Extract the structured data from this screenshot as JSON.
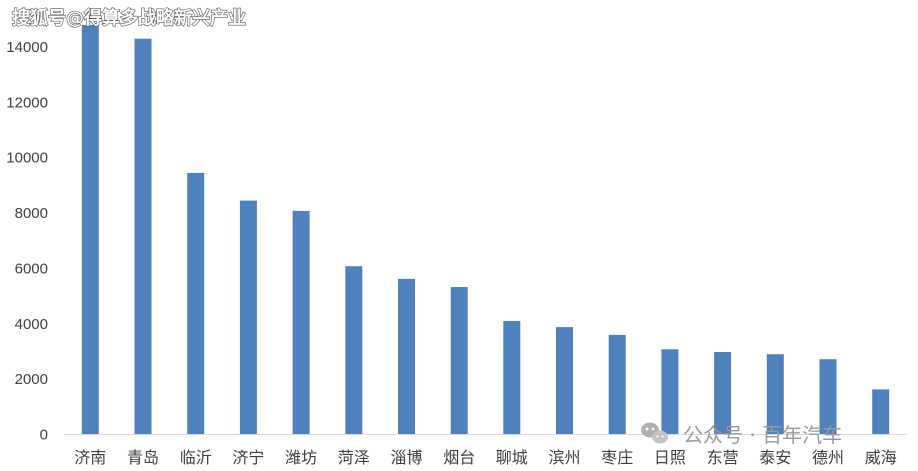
{
  "chart_data": {
    "type": "bar",
    "categories": [
      "济南",
      "青岛",
      "临沂",
      "济宁",
      "潍坊",
      "菏泽",
      "淄博",
      "烟台",
      "聊城",
      "滨州",
      "枣庄",
      "日照",
      "东营",
      "泰安",
      "德州",
      "威海"
    ],
    "values": [
      14800,
      14300,
      9450,
      8450,
      8080,
      6080,
      5620,
      5330,
      4100,
      3880,
      3600,
      3080,
      2980,
      2900,
      2720,
      1630
    ],
    "yticks": [
      0,
      2000,
      4000,
      6000,
      8000,
      10000,
      12000,
      14000
    ],
    "ylim": [
      0,
      15000
    ],
    "grid": false,
    "bar_color": "#4f81bd",
    "axis_color": "#d9d9d9"
  },
  "watermarks": {
    "top_left": "搜狐号@得算多战略新兴产业",
    "bottom_right": "公众号 · 百年汽车",
    "bottom_icon": "wechat-icon"
  }
}
